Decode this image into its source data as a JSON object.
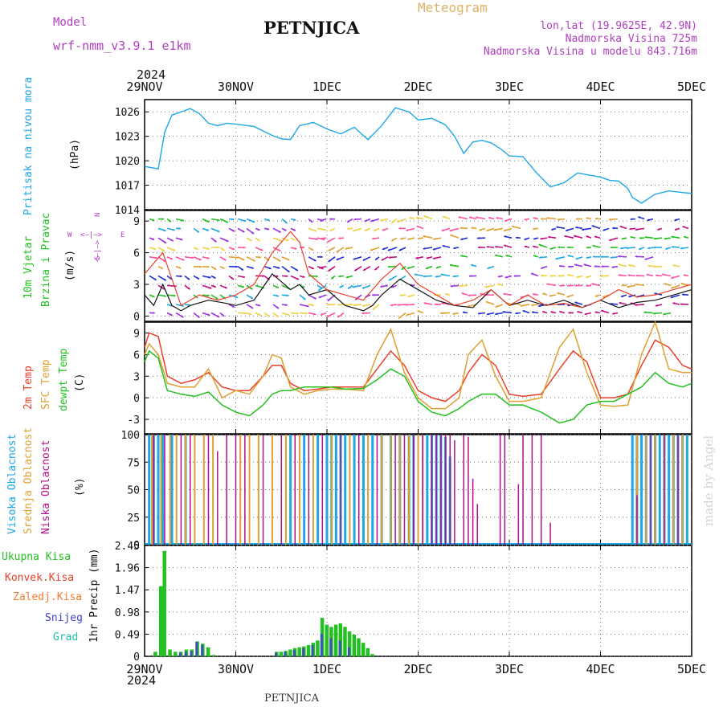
{
  "header": {
    "model_label": "Model",
    "model_name": "wrf-nmm_v3.9.1  e1km",
    "station": "PETNJICA",
    "meteogram": "Meteogram",
    "lonlat": "lon,lat (19.9625E, 42.9N)",
    "alt": "Nadmorska Visina 725m",
    "alt_model": "Nadmorska Visina u modelu 843.716m",
    "footer_station": "PETNJICA",
    "watermark": "made by Angel"
  },
  "time_axis": {
    "year": "2024",
    "ticks": [
      "29NOV",
      "30NOV",
      "1DEC",
      "2DEC",
      "3DEC",
      "4DEC",
      "5DEC"
    ]
  },
  "colors": {
    "pressure": "#1ea7e6",
    "wind_obs": "#111111",
    "gust": "#e8402a",
    "t2m": "#e8402a",
    "tsfc": "#e0a030",
    "tdew": "#22c020",
    "cloud_high": "#1ea7e6",
    "cloud_mid": "#e0a030",
    "cloud_low": "#b0108a",
    "precip_total": "#22c020",
    "precip_conv": "#e8402a",
    "precip_strat": "#f08030",
    "snow": "#4040d0",
    "hail": "#20c0b0"
  },
  "chart_data": [
    {
      "type": "line",
      "ylabel_left": "Pritisak na nivou mora",
      "units": "(hPa)",
      "ylim": [
        1014,
        1027.5
      ],
      "yticks": [
        "1014",
        "1017",
        "1020",
        "1023",
        "1026"
      ],
      "grid": true,
      "series": [
        {
          "x": [
            0,
            0.1,
            0.15,
            0.22,
            0.3,
            0.4,
            0.5,
            0.6,
            0.7,
            0.8,
            0.9,
            1.0,
            1.2,
            1.4,
            1.5,
            1.6,
            1.7,
            1.85,
            2.0,
            2.15,
            2.3,
            2.45,
            2.6,
            2.75,
            2.9,
            3.0,
            3.15,
            3.3,
            3.4,
            3.5,
            3.6,
            3.7,
            3.8,
            3.9,
            4.0,
            4.15,
            4.3,
            4.45,
            4.6,
            4.75,
            4.9,
            5.0,
            5.1,
            5.2,
            5.3,
            5.35,
            5.45,
            5.6,
            5.75,
            5.9,
            6.0
          ],
          "values": [
            1019.3,
            1019.1,
            1019,
            1023.5,
            1025.6,
            1026,
            1026.4,
            1025.8,
            1024.6,
            1024.3,
            1024.6,
            1024.5,
            1024.2,
            1023.1,
            1022.7,
            1022.6,
            1024.3,
            1024.7,
            1023.9,
            1023.3,
            1024.1,
            1022.6,
            1024.3,
            1026.5,
            1026,
            1025,
            1025.2,
            1024.4,
            1023,
            1020.9,
            1022.3,
            1022.5,
            1022.2,
            1021.5,
            1020.6,
            1020.5,
            1018.5,
            1016.8,
            1017.3,
            1018.5,
            1018.2,
            1018,
            1017.6,
            1017.5,
            1016.6,
            1015.5,
            1014.8,
            1015.9,
            1016.3,
            1016.1,
            1016
          ]
        }
      ]
    },
    {
      "type": "line",
      "ylabel_left1": "10m Vjetar",
      "ylabel_left2": "Brzina i Pravac",
      "units": "(m/s)",
      "compass": {
        "n": "N",
        "w": "W",
        "e": "E",
        "s": "S"
      },
      "ylim": [
        -0.5,
        10
      ],
      "yticks": [
        "0",
        "3",
        "6",
        "9"
      ],
      "grid": true,
      "series": [
        {
          "name": "speed",
          "x": [
            0,
            0.1,
            0.2,
            0.3,
            0.4,
            0.5,
            0.7,
            0.9,
            1.0,
            1.2,
            1.4,
            1.6,
            1.7,
            1.8,
            2.0,
            2.2,
            2.4,
            2.5,
            2.6,
            2.8,
            3.0,
            3.2,
            3.4,
            3.6,
            3.8,
            4.0,
            4.2,
            4.4,
            4.6,
            4.8,
            5.0,
            5.2,
            5.4,
            5.6,
            5.8,
            6.0
          ],
          "values": [
            2,
            1,
            3,
            1,
            0.5,
            1,
            1.5,
            1.2,
            1,
            1.5,
            4,
            2.5,
            3,
            2,
            2.5,
            1,
            0.5,
            1,
            2,
            3.5,
            2.5,
            1.5,
            1,
            0.8,
            2.5,
            1,
            1.5,
            1,
            1.5,
            0.8,
            1.5,
            0.8,
            1.3,
            1.5,
            2,
            2.5
          ]
        },
        {
          "name": "gust",
          "x": [
            0,
            0.2,
            0.4,
            0.6,
            0.8,
            1.0,
            1.2,
            1.4,
            1.6,
            1.7,
            1.8,
            2.0,
            2.2,
            2.4,
            2.6,
            2.8,
            3.0,
            3.2,
            3.4,
            3.6,
            3.8,
            4.0,
            4.2,
            4.4,
            4.6,
            4.8,
            5.0,
            5.2,
            5.4,
            5.6,
            5.8,
            6.0
          ],
          "values": [
            4,
            6,
            1,
            2,
            1.5,
            2,
            3,
            6,
            8,
            7,
            4,
            2.5,
            2,
            1.5,
            3.5,
            5,
            3,
            2,
            1,
            1.5,
            2.5,
            1,
            2,
            1,
            1.2,
            0.8,
            1.5,
            2.5,
            1.8,
            2,
            2.5,
            3
          ]
        }
      ]
    },
    {
      "type": "line",
      "ylabel_left1": "2m Temp",
      "ylabel_left2": "SFC Temp",
      "ylabel_left3": "dewpt Temp",
      "units": "(C)",
      "ylim": [
        -5,
        10.5
      ],
      "yticks": [
        "-3",
        "0",
        "3",
        "6",
        "9"
      ],
      "grid": true,
      "series": [
        {
          "name": "t2m",
          "x": [
            0,
            0.05,
            0.15,
            0.25,
            0.4,
            0.55,
            0.7,
            0.85,
            1.0,
            1.15,
            1.3,
            1.4,
            1.5,
            1.6,
            1.75,
            1.9,
            2.05,
            2.2,
            2.4,
            2.55,
            2.7,
            2.85,
            3.0,
            3.15,
            3.3,
            3.45,
            3.55,
            3.7,
            3.85,
            4.0,
            4.15,
            4.35,
            4.55,
            4.7,
            4.85,
            5.0,
            5.15,
            5.3,
            5.45,
            5.6,
            5.75,
            5.9,
            6.0
          ],
          "values": [
            7,
            9,
            8.5,
            3,
            2,
            2.5,
            3.5,
            1.5,
            1,
            1,
            3,
            4.5,
            4.5,
            2,
            1,
            1.2,
            1.5,
            1.5,
            1.5,
            4,
            6.5,
            4.5,
            1,
            0,
            -0.5,
            1,
            3.5,
            6,
            4.5,
            0.5,
            0.2,
            0.5,
            4,
            6.5,
            5,
            0,
            0,
            0.5,
            4.5,
            8,
            7,
            4.5,
            4
          ]
        },
        {
          "name": "tsfc",
          "x": [
            0,
            0.05,
            0.15,
            0.25,
            0.4,
            0.55,
            0.7,
            0.85,
            1.0,
            1.15,
            1.3,
            1.4,
            1.5,
            1.6,
            1.75,
            1.9,
            2.05,
            2.2,
            2.4,
            2.55,
            2.7,
            2.85,
            3.0,
            3.15,
            3.3,
            3.45,
            3.55,
            3.7,
            3.85,
            4.0,
            4.15,
            4.35,
            4.55,
            4.7,
            4.85,
            5.0,
            5.15,
            5.3,
            5.45,
            5.6,
            5.75,
            5.9,
            6.0
          ],
          "values": [
            6,
            7.5,
            6,
            2,
            1.5,
            1.5,
            4,
            0,
            1,
            0.5,
            3,
            6,
            5.5,
            1.5,
            0.5,
            1,
            1.2,
            1.2,
            1,
            6,
            9.5,
            3.5,
            0,
            -1.5,
            -1.5,
            0,
            6,
            8,
            3,
            -0.5,
            -0.5,
            0,
            7,
            9.5,
            3.5,
            -1,
            -1.2,
            -1,
            6,
            10.5,
            4,
            3.5,
            3.5
          ]
        },
        {
          "name": "tdew",
          "x": [
            0,
            0.05,
            0.15,
            0.25,
            0.4,
            0.55,
            0.7,
            0.85,
            1.0,
            1.15,
            1.3,
            1.4,
            1.5,
            1.6,
            1.75,
            1.9,
            2.05,
            2.2,
            2.4,
            2.55,
            2.7,
            2.85,
            3.0,
            3.15,
            3.3,
            3.45,
            3.55,
            3.7,
            3.85,
            4.0,
            4.15,
            4.35,
            4.55,
            4.7,
            4.85,
            5.0,
            5.15,
            5.3,
            5.45,
            5.6,
            5.75,
            5.9,
            6.0
          ],
          "values": [
            5,
            6.5,
            5.5,
            1,
            0.5,
            0.2,
            0.8,
            -1,
            -2,
            -2.5,
            -1,
            0.5,
            1,
            1,
            1.5,
            1.5,
            1.5,
            1.2,
            1.3,
            2.5,
            4,
            3,
            -0.5,
            -2,
            -2.5,
            -1.5,
            -0.5,
            0.5,
            0.5,
            -1,
            -1,
            -2,
            -3.5,
            -3,
            -1,
            -0.5,
            -0.5,
            0.5,
            1.5,
            3.5,
            2,
            1.5,
            2
          ]
        }
      ]
    },
    {
      "type": "bar",
      "ylabel_left1": "Visoka Oblacnost",
      "ylabel_left2": "Srednja Oblacnost",
      "ylabel_left3": "Niska Oblacnost",
      "units": "(%)",
      "ylim": [
        0,
        100
      ],
      "yticks": [
        "0",
        "25",
        "50",
        "75",
        "100"
      ],
      "grid": true,
      "series": [
        {
          "name": "high",
          "x": [
            0.05,
            0.1,
            0.15,
            0.2,
            0.3,
            0.45,
            1.6,
            1.75,
            1.9,
            2.0,
            2.05,
            2.1,
            2.15,
            2.2,
            2.3,
            2.4,
            2.5,
            2.6,
            2.7,
            2.8,
            2.9,
            2.95,
            3.1,
            3.15,
            3.2,
            3.25,
            3.3,
            3.35,
            5.35,
            5.4,
            5.45,
            5.5,
            5.55,
            5.6,
            5.65,
            5.7,
            5.75,
            5.8,
            5.85,
            5.9,
            5.95
          ],
          "values": [
            100,
            100,
            100,
            100,
            100,
            100,
            100,
            100,
            100,
            100,
            100,
            100,
            100,
            100,
            100,
            100,
            100,
            100,
            100,
            100,
            100,
            100,
            100,
            100,
            100,
            100,
            98,
            80,
            100,
            100,
            100,
            100,
            100,
            100,
            100,
            100,
            100,
            100,
            100,
            100,
            100
          ]
        },
        {
          "name": "mid",
          "x": [
            0.08,
            0.18,
            0.28,
            0.35,
            0.45,
            0.55,
            0.65,
            0.75,
            1.05,
            1.15,
            1.25,
            1.4,
            1.55,
            1.7,
            1.85,
            2.05,
            2.25,
            2.45,
            2.6,
            2.7,
            2.8,
            2.9,
            3.0,
            3.05,
            5.4,
            5.5,
            5.6,
            5.7,
            5.8,
            5.9
          ],
          "values": [
            100,
            100,
            100,
            100,
            100,
            100,
            100,
            100,
            100,
            100,
            100,
            100,
            100,
            100,
            100,
            100,
            100,
            100,
            100,
            100,
            100,
            100,
            100,
            100,
            100,
            100,
            100,
            100,
            100,
            100
          ]
        },
        {
          "name": "low",
          "x": [
            0.1,
            0.22,
            0.4,
            0.5,
            0.7,
            0.8,
            0.9,
            1.0,
            1.1,
            1.3,
            1.5,
            1.65,
            1.8,
            1.95,
            2.15,
            2.35,
            2.55,
            2.75,
            2.85,
            2.95,
            3.05,
            3.15,
            3.2,
            3.25,
            3.3,
            3.35,
            3.4,
            3.5,
            3.55,
            3.6,
            3.65,
            3.9,
            3.95,
            4.1,
            4.15,
            4.25,
            4.35,
            4.45,
            5.4,
            5.55,
            5.7,
            5.85
          ],
          "values": [
            100,
            100,
            100,
            100,
            100,
            85,
            100,
            100,
            100,
            100,
            100,
            100,
            100,
            100,
            100,
            100,
            100,
            100,
            100,
            100,
            100,
            100,
            100,
            100,
            100,
            100,
            95,
            100,
            98,
            60,
            37,
            100,
            100,
            55,
            100,
            100,
            100,
            20,
            45,
            100,
            100,
            100
          ]
        }
      ]
    },
    {
      "type": "bar",
      "ylabel_left": "1hr Precip (mm)",
      "legend": [
        "Ukupna Kisa",
        "Konvek.Kisa",
        "Zaledj.Kisa",
        "Snijeg",
        "Grad"
      ],
      "ylim": [
        0,
        2.45
      ],
      "yticks": [
        "0",
        "0.49",
        "0.98",
        "1.47",
        "1.96",
        "2.45"
      ],
      "grid": true,
      "series": [
        {
          "name": "total",
          "x": [
            0.12,
            0.18,
            0.22,
            0.28,
            0.34,
            0.4,
            0.46,
            0.52,
            0.58,
            0.64,
            0.7,
            0.76,
            1.45,
            1.5,
            1.55,
            1.6,
            1.65,
            1.7,
            1.75,
            1.8,
            1.85,
            1.9,
            1.95,
            2.0,
            2.05,
            2.1,
            2.15,
            2.2,
            2.25,
            2.3,
            2.35,
            2.4,
            2.45,
            2.5
          ],
          "values": [
            0.1,
            1.55,
            2.33,
            0.15,
            0.1,
            0.1,
            0.15,
            0.15,
            0.33,
            0.28,
            0.2,
            0.03,
            0.1,
            0.1,
            0.12,
            0.15,
            0.18,
            0.2,
            0.22,
            0.25,
            0.3,
            0.35,
            0.85,
            0.7,
            0.65,
            0.7,
            0.73,
            0.65,
            0.55,
            0.48,
            0.4,
            0.3,
            0.18,
            0.05
          ]
        },
        {
          "name": "snow",
          "x": [
            0.4,
            0.46,
            0.52,
            0.58,
            0.64,
            1.45,
            1.55,
            1.65,
            1.75,
            1.85,
            1.95,
            2.05,
            2.15,
            2.25
          ],
          "values": [
            0.08,
            0.1,
            0.12,
            0.32,
            0.25,
            0.08,
            0.1,
            0.14,
            0.18,
            0.25,
            0.5,
            0.4,
            0.35,
            0.2
          ]
        }
      ]
    }
  ]
}
